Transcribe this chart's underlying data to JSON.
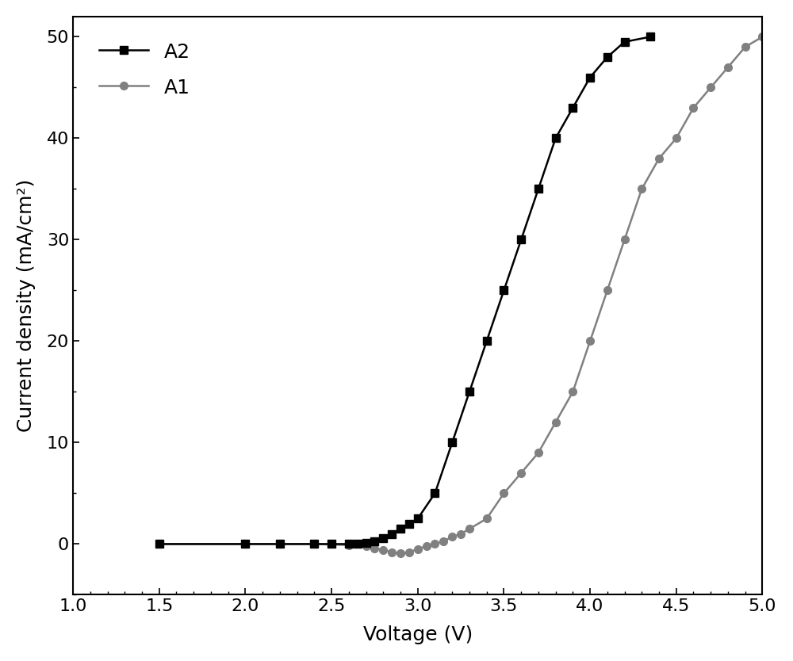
{
  "title": "",
  "xlabel": "Voltage (V)",
  "ylabel": "Current density (mA/cm²)",
  "xlim": [
    1.0,
    5.0
  ],
  "ylim": [
    -5,
    52
  ],
  "xticks": [
    1.0,
    1.5,
    2.0,
    2.5,
    3.0,
    3.5,
    4.0,
    4.5,
    5.0
  ],
  "yticks": [
    0,
    10,
    20,
    30,
    40,
    50
  ],
  "A2_x": [
    1.5,
    2.0,
    2.2,
    2.4,
    2.5,
    2.6,
    2.65,
    2.7,
    2.75,
    2.8,
    2.85,
    2.9,
    2.95,
    3.0,
    3.1,
    3.2,
    3.3,
    3.4,
    3.5,
    3.6,
    3.7,
    3.8,
    3.9,
    4.0,
    4.1,
    4.2,
    4.35
  ],
  "A2_y": [
    0.0,
    0.0,
    0.0,
    0.0,
    0.0,
    0.0,
    0.0,
    0.1,
    0.3,
    0.6,
    1.0,
    1.5,
    2.0,
    2.5,
    5.0,
    10.0,
    15.0,
    20.0,
    25.0,
    30.0,
    35.0,
    40.0,
    43.0,
    46.0,
    48.0,
    49.5,
    50.0
  ],
  "A1_x": [
    1.5,
    2.0,
    2.4,
    2.6,
    2.7,
    2.75,
    2.8,
    2.85,
    2.9,
    2.95,
    3.0,
    3.05,
    3.1,
    3.15,
    3.2,
    3.25,
    3.3,
    3.4,
    3.5,
    3.6,
    3.7,
    3.8,
    3.9,
    4.0,
    4.1,
    4.2,
    4.3,
    4.4,
    4.5,
    4.6,
    4.7,
    4.8,
    4.9,
    5.0
  ],
  "A1_y": [
    0.0,
    0.0,
    0.0,
    -0.1,
    -0.2,
    -0.4,
    -0.6,
    -0.8,
    -0.9,
    -0.8,
    -0.5,
    -0.2,
    0.0,
    0.3,
    0.7,
    1.0,
    1.5,
    2.5,
    5.0,
    7.0,
    9.0,
    12.0,
    15.0,
    20.0,
    25.0,
    30.0,
    35.0,
    38.0,
    40.0,
    43.0,
    45.0,
    47.0,
    49.0,
    50.0
  ],
  "A2_color": "#000000",
  "A1_color": "#808080",
  "background_color": "#ffffff",
  "linewidth": 1.8,
  "markersize_A2": 7,
  "markersize_A1": 7,
  "xlabel_fontsize": 18,
  "ylabel_fontsize": 18,
  "tick_labelsize": 16,
  "legend_fontsize": 18
}
